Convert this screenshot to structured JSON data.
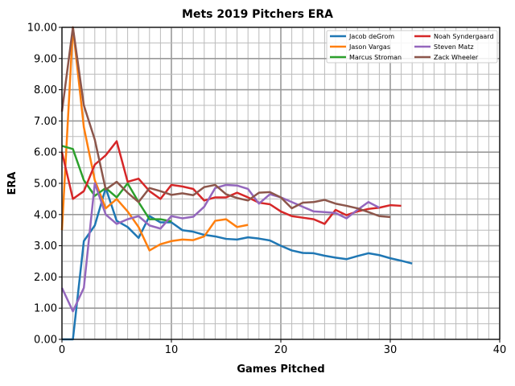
{
  "chart_data": {
    "type": "line",
    "title": "Mets 2019 Pitchers ERA",
    "xlabel": "Games Pitched",
    "ylabel": "ERA",
    "xlim": [
      0,
      40
    ],
    "ylim": [
      0,
      10
    ],
    "xticks": [
      0,
      10,
      20,
      30,
      40
    ],
    "yticks": [
      "0.00",
      "1.00",
      "2.00",
      "3.00",
      "4.00",
      "5.00",
      "6.00",
      "7.00",
      "8.00",
      "9.00",
      "10.00"
    ],
    "grid": true,
    "legend_position": "top-right",
    "series": [
      {
        "name": "Jacob deGrom",
        "color": "#1f77b4",
        "start": 0,
        "values": [
          0,
          0,
          3.15,
          3.65,
          4.85,
          3.8,
          3.6,
          3.25,
          3.95,
          3.75,
          3.75,
          3.5,
          3.45,
          3.35,
          3.3,
          3.22,
          3.2,
          3.27,
          3.23,
          3.17,
          3.0,
          2.85,
          2.77,
          2.76,
          2.68,
          2.62,
          2.57,
          2.67,
          2.76,
          2.7,
          2.6,
          2.52,
          2.43
        ]
      },
      {
        "name": "Jason Vargas",
        "color": "#ff7f0e",
        "start": 0,
        "values": [
          3.5,
          10.0,
          6.8,
          5.1,
          4.2,
          4.5,
          4.1,
          3.6,
          2.85,
          3.05,
          3.15,
          3.2,
          3.18,
          3.3,
          3.8,
          3.85,
          3.6,
          3.67
        ]
      },
      {
        "name": "Marcus Stroman",
        "color": "#2ca02c",
        "start": 0,
        "values": [
          6.2,
          6.1,
          5.1,
          4.6,
          4.85,
          4.55,
          5.0,
          4.4,
          3.85,
          3.85,
          3.78
        ]
      },
      {
        "name": "Noah Syndergaard",
        "color": "#d62728",
        "start": 0,
        "values": [
          6.0,
          4.5,
          4.75,
          5.6,
          5.9,
          6.35,
          5.05,
          5.15,
          4.75,
          4.5,
          4.95,
          4.9,
          4.82,
          4.45,
          4.55,
          4.55,
          4.7,
          4.55,
          4.38,
          4.33,
          4.1,
          3.95,
          3.9,
          3.85,
          3.7,
          4.15,
          3.98,
          4.1,
          4.18,
          4.22,
          4.3,
          4.28
        ]
      },
      {
        "name": "Steven Matz",
        "color": "#9467bd",
        "start": 0,
        "values": [
          1.65,
          0.9,
          1.65,
          5.0,
          4.0,
          3.7,
          3.85,
          3.95,
          3.65,
          3.55,
          3.95,
          3.88,
          3.93,
          4.25,
          4.85,
          4.95,
          4.93,
          4.82,
          4.35,
          4.65,
          4.55,
          4.4,
          4.25,
          4.1,
          4.08,
          4.05,
          3.88,
          4.15,
          4.4,
          4.22
        ]
      },
      {
        "name": "Zack Wheeler",
        "color": "#8c564b",
        "start": 0,
        "values": [
          7.3,
          10.0,
          7.5,
          6.4,
          4.8,
          5.05,
          4.7,
          4.4,
          4.85,
          4.75,
          4.63,
          4.68,
          4.62,
          4.88,
          4.95,
          4.65,
          4.53,
          4.45,
          4.7,
          4.72,
          4.55,
          4.2,
          4.38,
          4.4,
          4.47,
          4.35,
          4.28,
          4.2,
          4.08,
          3.95,
          3.92
        ]
      }
    ]
  }
}
